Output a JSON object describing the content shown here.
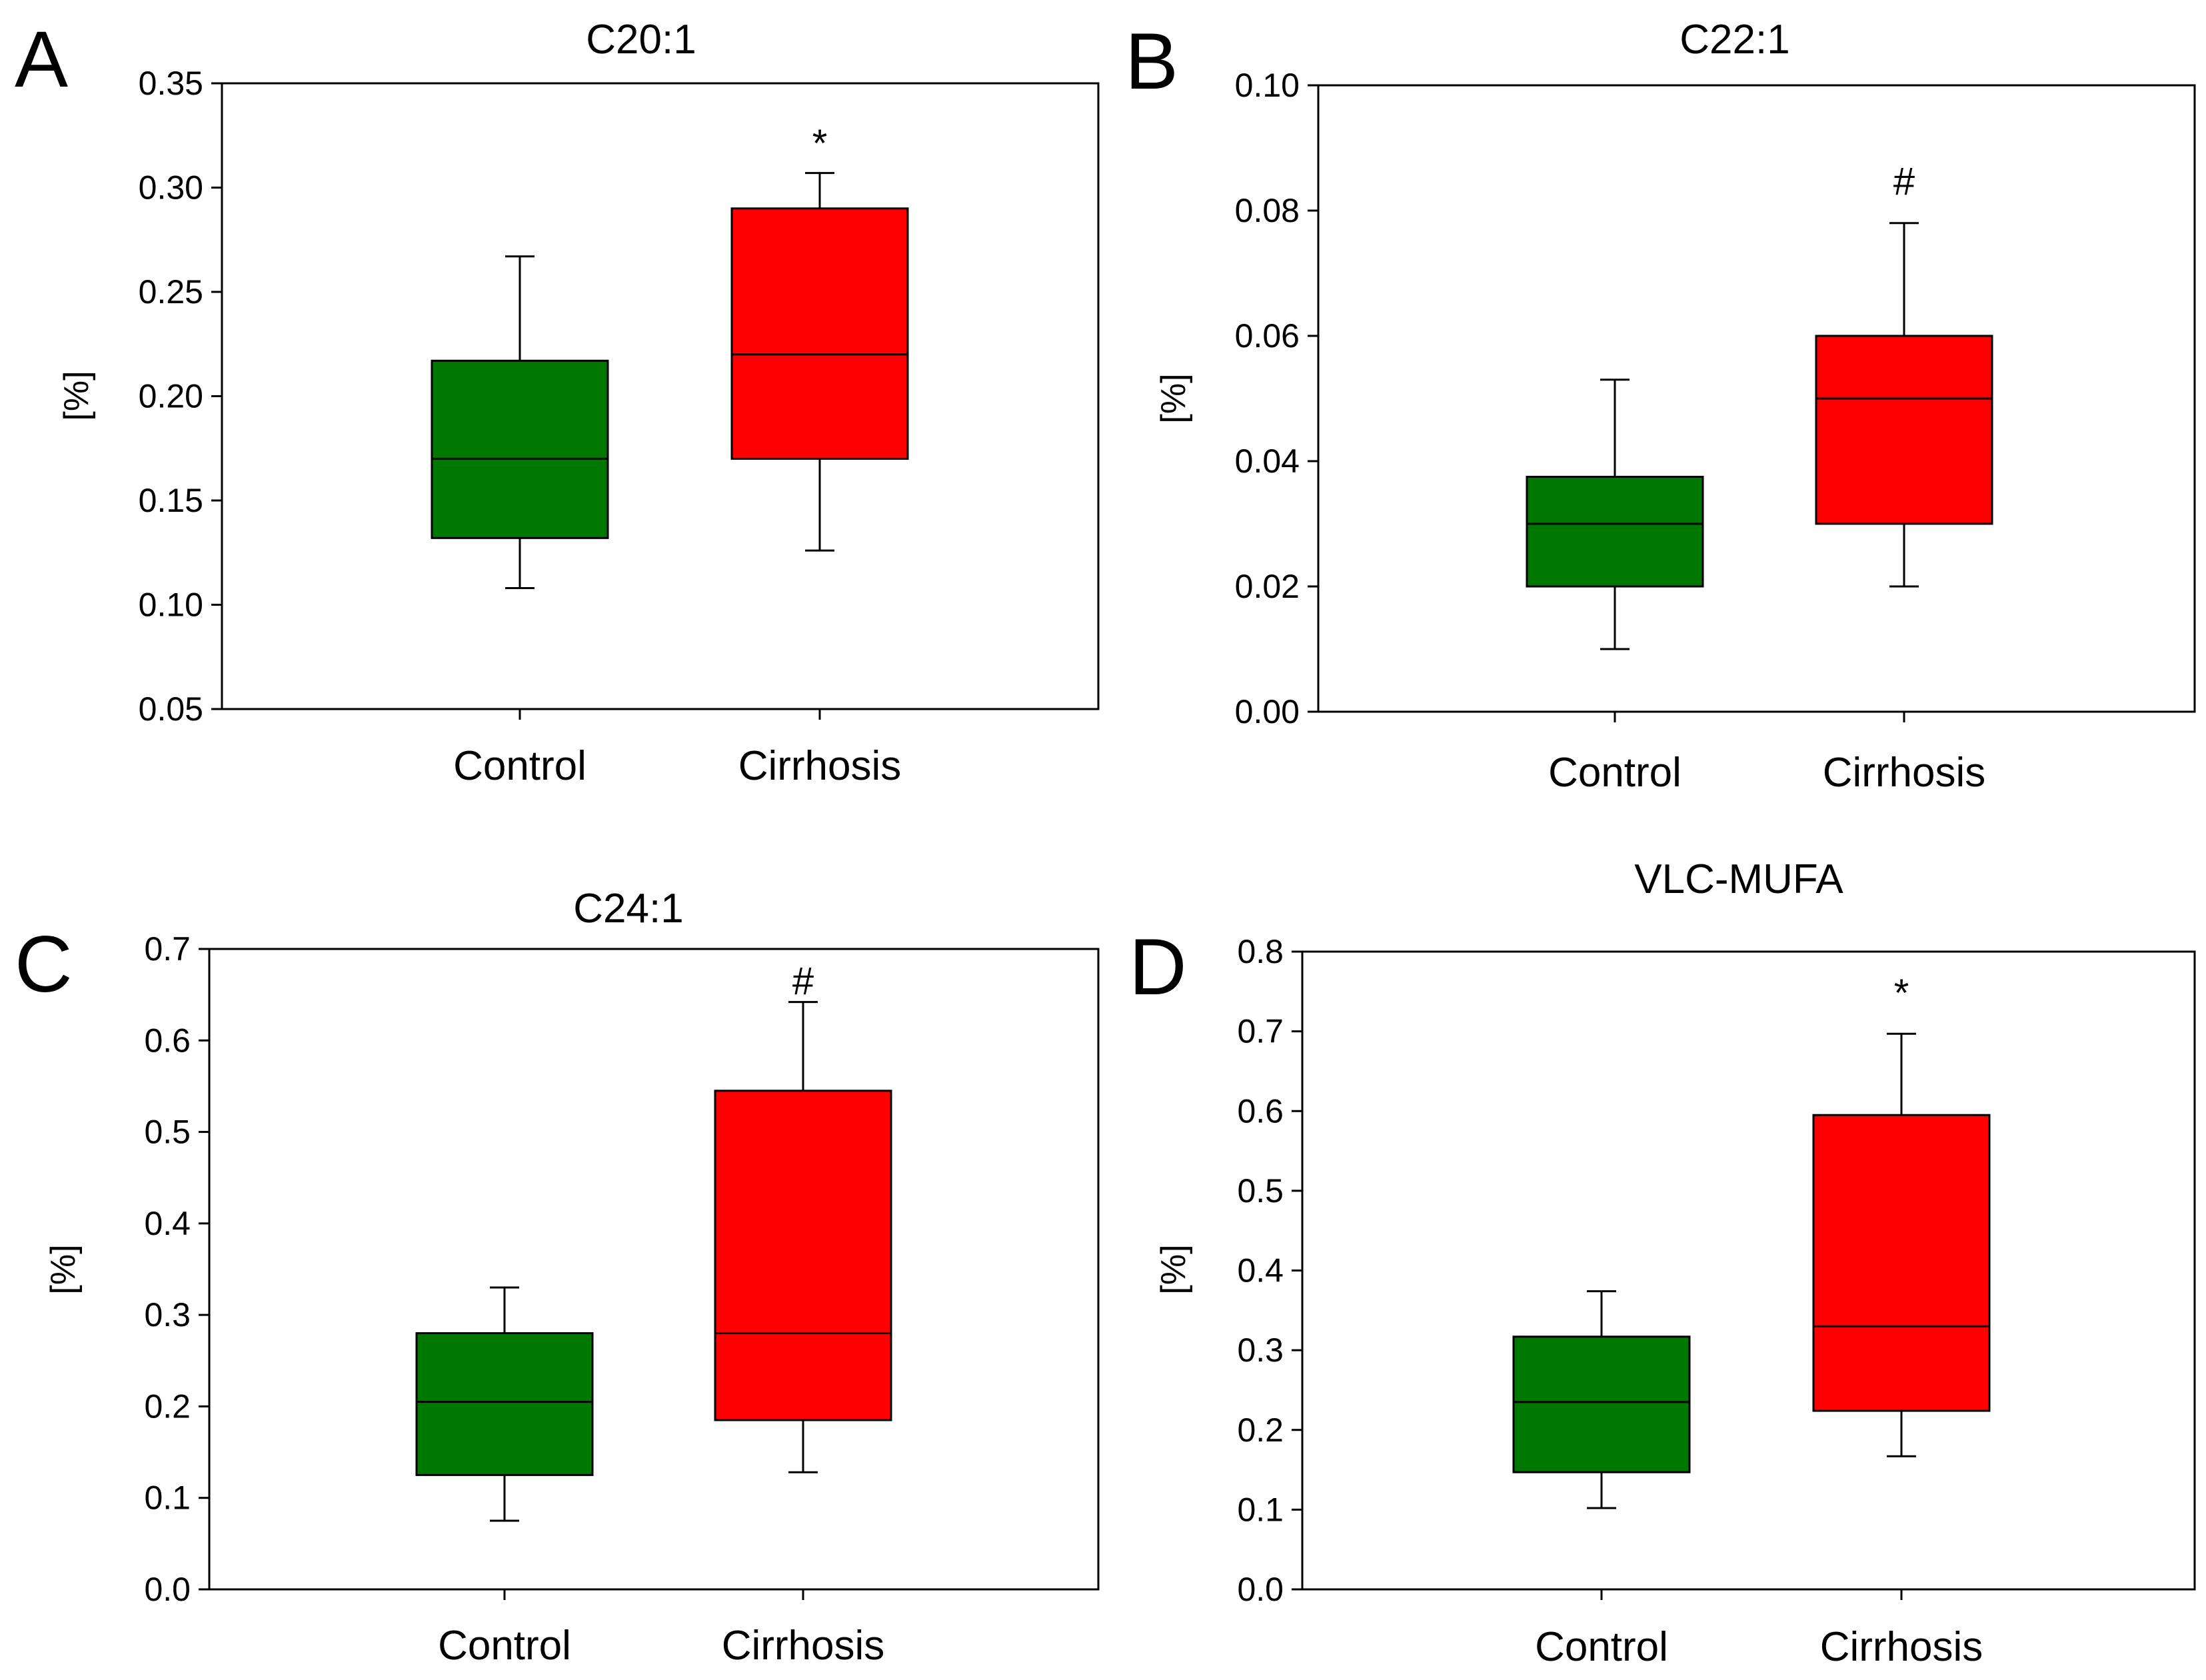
{
  "chart_data": [
    {
      "panel": "A",
      "type": "box",
      "title": "C20:1",
      "ylabel": "[%]",
      "xlabel": "",
      "ylim": [
        0.05,
        0.35
      ],
      "yticks": [
        "0.05",
        "0.10",
        "0.15",
        "0.20",
        "0.25",
        "0.30",
        "0.35"
      ],
      "categories": [
        "Control",
        "Cirrhosis"
      ],
      "boxes": [
        {
          "name": "Control",
          "color": "#007800",
          "whisker_low": 0.108,
          "q1": 0.132,
          "median": 0.17,
          "q3": 0.217,
          "whisker_high": 0.267,
          "marker": ""
        },
        {
          "name": "Cirrhosis",
          "color": "#ff0000",
          "whisker_low": 0.126,
          "q1": 0.17,
          "median": 0.22,
          "q3": 0.29,
          "whisker_high": 0.307,
          "marker": "*"
        }
      ]
    },
    {
      "panel": "B",
      "type": "box",
      "title": "C22:1",
      "ylabel": "[%]",
      "xlabel": "",
      "ylim": [
        0.0,
        0.1
      ],
      "yticks": [
        "0.00",
        "0.02",
        "0.04",
        "0.06",
        "0.08",
        "0.10"
      ],
      "categories": [
        "Control",
        "Cirrhosis"
      ],
      "boxes": [
        {
          "name": "Control",
          "color": "#007800",
          "whisker_low": 0.01,
          "q1": 0.02,
          "median": 0.03,
          "q3": 0.0375,
          "whisker_high": 0.053,
          "marker": ""
        },
        {
          "name": "Cirrhosis",
          "color": "#ff0000",
          "whisker_low": 0.02,
          "q1": 0.03,
          "median": 0.05,
          "q3": 0.06,
          "whisker_high": 0.078,
          "marker": "#"
        }
      ]
    },
    {
      "panel": "C",
      "type": "box",
      "title": "C24:1",
      "ylabel": "[%]",
      "xlabel": "",
      "ylim": [
        0.0,
        0.7
      ],
      "yticks": [
        "0.0",
        "0.1",
        "0.2",
        "0.3",
        "0.4",
        "0.5",
        "0.6",
        "0.7"
      ],
      "categories": [
        "Control",
        "Cirrhosis"
      ],
      "boxes": [
        {
          "name": "Control",
          "color": "#007800",
          "whisker_low": 0.075,
          "q1": 0.125,
          "median": 0.205,
          "q3": 0.28,
          "whisker_high": 0.33,
          "marker": ""
        },
        {
          "name": "Cirrhosis",
          "color": "#ff0000",
          "whisker_low": 0.128,
          "q1": 0.185,
          "median": 0.28,
          "q3": 0.545,
          "whisker_high": 0.642,
          "marker": "#"
        }
      ]
    },
    {
      "panel": "D",
      "type": "box",
      "title": "VLC-MUFA",
      "ylabel": "[%]",
      "xlabel": "",
      "ylim": [
        0.0,
        0.8
      ],
      "yticks": [
        "0.0",
        "0.1",
        "0.2",
        "0.3",
        "0.4",
        "0.5",
        "0.6",
        "0.7",
        "0.8"
      ],
      "categories": [
        "Control",
        "Cirrhosis"
      ],
      "boxes": [
        {
          "name": "Control",
          "color": "#007800",
          "whisker_low": 0.102,
          "q1": 0.147,
          "median": 0.235,
          "q3": 0.317,
          "whisker_high": 0.374,
          "marker": ""
        },
        {
          "name": "Cirrhosis",
          "color": "#ff0000",
          "whisker_low": 0.167,
          "q1": 0.224,
          "median": 0.33,
          "q3": 0.595,
          "whisker_high": 0.697,
          "marker": "*"
        }
      ]
    }
  ]
}
